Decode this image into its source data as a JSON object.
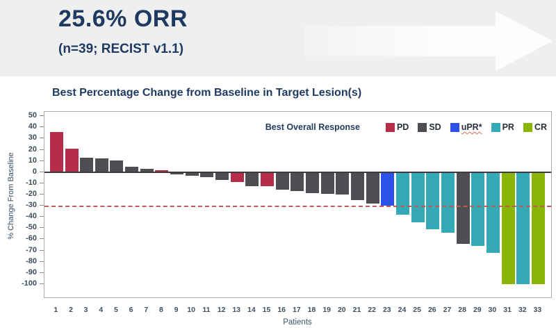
{
  "header": {
    "title": "25.6% ORR",
    "subtitle": "(n=39; RECIST v1.1)"
  },
  "chart_data": {
    "type": "bar",
    "title": "Best Percentage Change from Baseline in Target Lesion(s)",
    "xlabel": "Patients",
    "ylabel": "% Change From Baseline",
    "ylim": [
      -100,
      50
    ],
    "y_ticks": [
      50,
      40,
      30,
      20,
      10,
      0,
      -10,
      -20,
      -30,
      -40,
      -50,
      -60,
      -70,
      -80,
      -90,
      -100
    ],
    "reference_line": -30,
    "grid": false,
    "legend_position": "top-right-inside",
    "legend_title": "Best Overall Response",
    "legend": [
      {
        "label": "PD",
        "color": "#b52e49",
        "wavy_underline": false
      },
      {
        "label": "SD",
        "color": "#4d4d52",
        "wavy_underline": false
      },
      {
        "label": "uPR*",
        "color": "#2d52e9",
        "wavy_underline": true
      },
      {
        "label": "PR",
        "color": "#36a9b7",
        "wavy_underline": false
      },
      {
        "label": "CR",
        "color": "#8bb409",
        "wavy_underline": false
      }
    ],
    "categories": [
      "1",
      "2",
      "3",
      "4",
      "5",
      "6",
      "7",
      "8",
      "9",
      "10",
      "11",
      "12",
      "13",
      "14",
      "15",
      "16",
      "17",
      "18",
      "19",
      "20",
      "21",
      "22",
      "23",
      "24",
      "25",
      "26",
      "27",
      "28",
      "29",
      "30",
      "31",
      "32",
      "33"
    ],
    "values": [
      36,
      21,
      13,
      12,
      10.5,
      5,
      3,
      1.5,
      -2,
      -3.5,
      -4.5,
      -7,
      -9,
      -12.5,
      -12.5,
      -15.5,
      -17,
      -19,
      -19.5,
      -20,
      -25,
      -28,
      -30,
      -38,
      -45,
      -51,
      -54,
      -64,
      -66,
      -72,
      -100,
      -100,
      -100
    ],
    "responses": [
      "PD",
      "PD",
      "SD",
      "SD",
      "SD",
      "SD",
      "SD",
      "PD",
      "SD",
      "SD",
      "SD",
      "SD",
      "PD",
      "SD",
      "PD",
      "SD",
      "SD",
      "SD",
      "SD",
      "SD",
      "SD",
      "SD",
      "uPR*",
      "PR",
      "PR",
      "PR",
      "PR",
      "SD",
      "PR",
      "PR",
      "CR",
      "PR",
      "CR"
    ]
  },
  "colors": {
    "header_background": "#efefef",
    "title_navy": "#1e3a63",
    "reference_line": "#bc5a55",
    "pd_red": "#b52e49",
    "sd_gray": "#4d4d52",
    "upr_blue": "#2d52e9",
    "pr_teal": "#36a9b7",
    "cr_green": "#8bb409"
  }
}
